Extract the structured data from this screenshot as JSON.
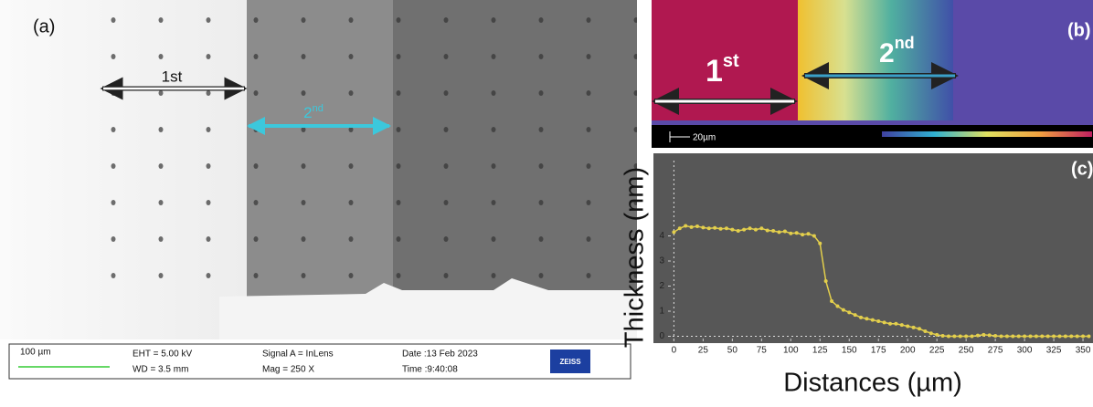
{
  "panel_a": {
    "label": "(a)",
    "arrow_1": "1st",
    "arrow_2": {
      "base": "2",
      "sup": "nd"
    }
  },
  "sem_info": {
    "scale": "100 µm",
    "eht": "EHT =  5.00 kV",
    "wd": "WD =  3.5 mm",
    "signal": "Signal A = InLens",
    "mag": "Mag =    250 X",
    "date": "Date :13 Feb 2023",
    "time": "Time :9:40:08",
    "brand": "ZEISS"
  },
  "panel_b": {
    "label": "(b)",
    "arrow_1": {
      "base": "1",
      "sup": "st"
    },
    "arrow_2": {
      "base": "2",
      "sup": "nd"
    },
    "scale": "20µm"
  },
  "chart_data": {
    "type": "line",
    "panel_label": "(c)",
    "xlabel": "Distances (µm)",
    "ylabel": "Thickness (nm)",
    "color": "#e3cf4c",
    "background": "#575757",
    "x": [
      0,
      5,
      10,
      15,
      20,
      25,
      30,
      35,
      40,
      45,
      50,
      55,
      60,
      65,
      70,
      75,
      80,
      85,
      90,
      95,
      100,
      105,
      110,
      115,
      120,
      125,
      130,
      135,
      140,
      145,
      150,
      155,
      160,
      165,
      170,
      175,
      180,
      185,
      190,
      195,
      200,
      205,
      210,
      215,
      220,
      225,
      230,
      235,
      240,
      245,
      250,
      255,
      260,
      265,
      270,
      275,
      280,
      285,
      290,
      295,
      300,
      305,
      310,
      315,
      320,
      325,
      330,
      335,
      340,
      345,
      350,
      355
    ],
    "values": [
      4.15,
      4.3,
      4.4,
      4.35,
      4.38,
      4.33,
      4.3,
      4.32,
      4.28,
      4.3,
      4.25,
      4.2,
      4.25,
      4.3,
      4.25,
      4.3,
      4.22,
      4.2,
      4.15,
      4.18,
      4.1,
      4.12,
      4.05,
      4.08,
      4.0,
      3.7,
      2.2,
      1.4,
      1.2,
      1.05,
      0.95,
      0.85,
      0.75,
      0.7,
      0.65,
      0.6,
      0.55,
      0.5,
      0.5,
      0.45,
      0.4,
      0.35,
      0.3,
      0.2,
      0.12,
      0.06,
      0.02,
      0,
      0,
      0,
      0,
      0,
      0.03,
      0.06,
      0.04,
      0.02,
      0,
      0,
      0,
      0,
      0,
      0,
      0,
      0,
      0,
      0,
      0,
      0,
      0,
      0,
      0,
      0
    ],
    "xlim": [
      -5,
      357
    ],
    "ylim": [
      -0.2,
      7
    ],
    "xticks": [
      0,
      25,
      50,
      75,
      100,
      125,
      150,
      175,
      200,
      225,
      250,
      275,
      300,
      325,
      350
    ],
    "yticks": [
      0,
      1,
      2,
      3,
      4
    ]
  }
}
